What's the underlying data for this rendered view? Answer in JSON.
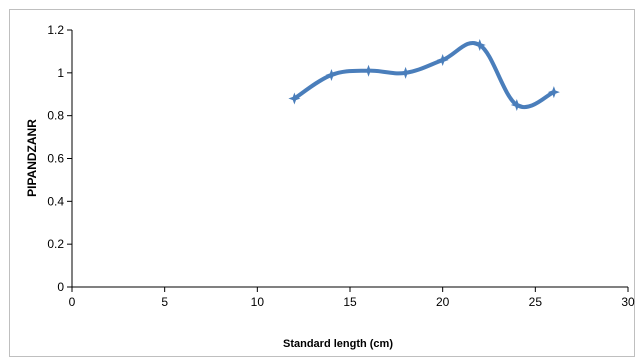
{
  "chart_data": {
    "type": "line",
    "title": "",
    "xlabel": "Standard length (cm)",
    "ylabel": "PIPANDZANR",
    "xlim": [
      0,
      30
    ],
    "ylim": [
      0,
      1.2
    ],
    "xticks": [
      "0",
      "5",
      "10",
      "15",
      "20",
      "25",
      "30"
    ],
    "yticks": [
      "0",
      "0.2",
      "0.4",
      "0.6",
      "0.8",
      "1",
      "1.2"
    ],
    "grid": false,
    "legend": "none",
    "line_color": "#4a7ebb",
    "series": [
      {
        "x": [
          12,
          14,
          16,
          18,
          20,
          22,
          24,
          26
        ],
        "y": [
          0.88,
          0.99,
          1.01,
          1.0,
          1.06,
          1.13,
          0.85,
          0.91
        ]
      }
    ]
  }
}
